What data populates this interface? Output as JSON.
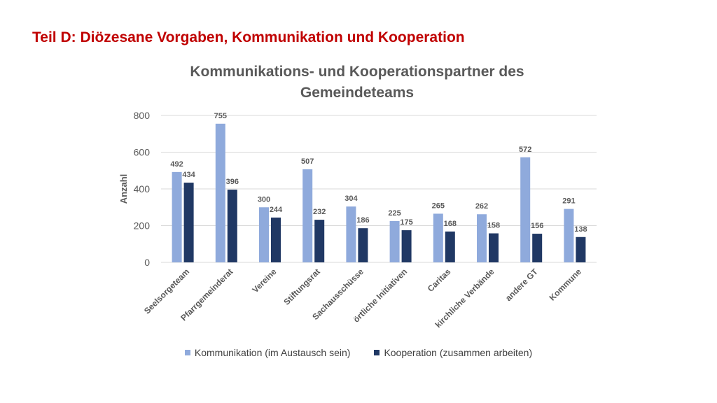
{
  "slide_title": "Teil D: Diözesane Vorgaben, Kommunikation und Kooperation",
  "colors": {
    "title_red": "#c00000",
    "series_1": "#8faadc",
    "series_2": "#203864",
    "axis_text": "#595959",
    "grid": "#d9d9d9"
  },
  "chart_data": {
    "type": "bar",
    "title": "Kommunikations- und Kooperationspartner des Gemeindeteams",
    "ylabel": "Anzahl",
    "xlabel": "",
    "ylim": [
      0,
      800
    ],
    "yticks": [
      0,
      200,
      400,
      600,
      800
    ],
    "grid": true,
    "legend_position": "bottom",
    "categories": [
      "Seelsorgeteam",
      "Pfarrgemeinderat",
      "Vereine",
      "Stiftungsrat",
      "Sachausschüsse",
      "örtliche Initiativen",
      "Caritas",
      "kirchliche Verbände",
      "andere GT",
      "Kommune"
    ],
    "series": [
      {
        "name": "Kommunikation (im Austausch sein)",
        "values": [
          492,
          755,
          300,
          507,
          304,
          225,
          265,
          262,
          572,
          291
        ]
      },
      {
        "name": "Kooperation (zusammen arbeiten)",
        "values": [
          434,
          396,
          244,
          232,
          186,
          175,
          168,
          158,
          156,
          138
        ]
      }
    ]
  }
}
